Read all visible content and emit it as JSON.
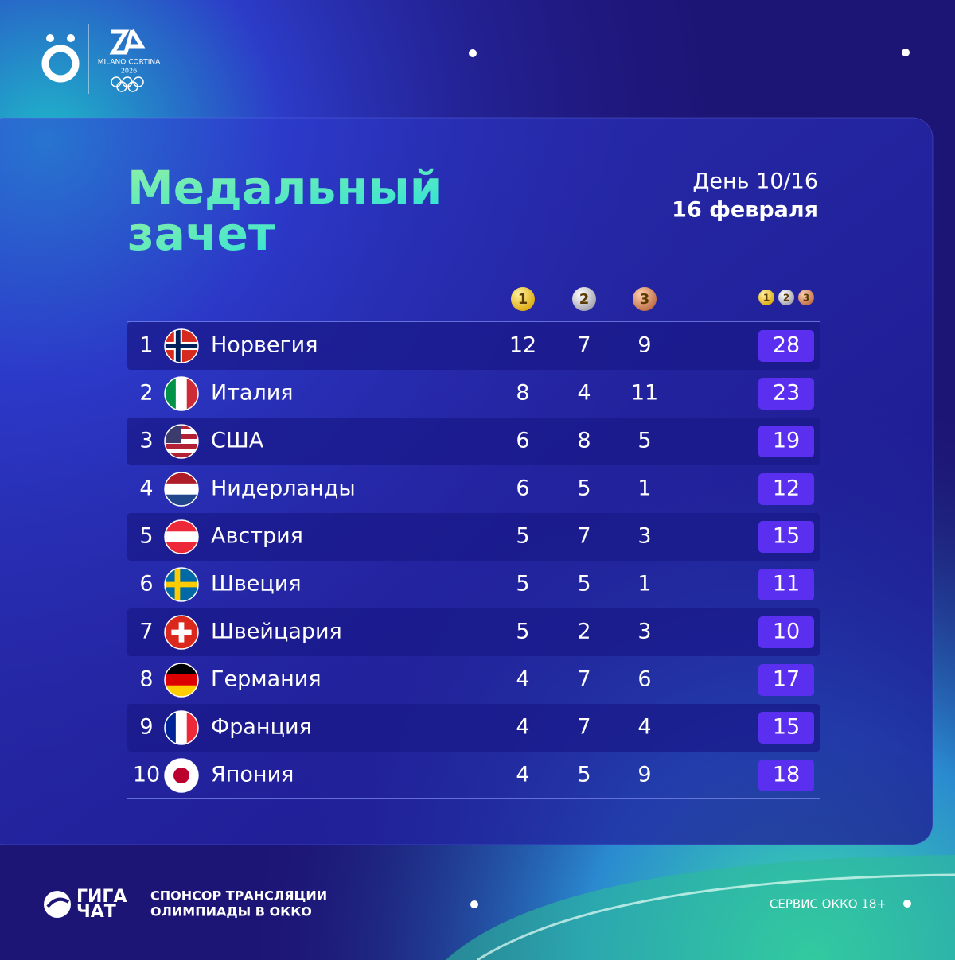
{
  "logo": {
    "event": "MILANO CORTINA",
    "year": "2026"
  },
  "header": {
    "title_lines": [
      "Медальный",
      "зачет"
    ],
    "day": "День 10/16",
    "date": "16 февраля"
  },
  "table": {
    "medal_icons": [
      1,
      2,
      3
    ],
    "rows": [
      [
        1,
        "Норвегия",
        12,
        7,
        9,
        28
      ],
      [
        2,
        "Италия",
        8,
        4,
        11,
        23
      ],
      [
        3,
        "США",
        6,
        8,
        5,
        19
      ],
      [
        4,
        "Нидерланды",
        6,
        5,
        1,
        12
      ],
      [
        5,
        "Австрия",
        5,
        7,
        3,
        15
      ],
      [
        6,
        "Швеция",
        5,
        5,
        1,
        11
      ],
      [
        7,
        "Швейцария",
        5,
        2,
        3,
        10
      ],
      [
        8,
        "Германия",
        4,
        7,
        6,
        17
      ],
      [
        9,
        "Франция",
        4,
        7,
        4,
        15
      ],
      [
        10,
        "Япония",
        4,
        5,
        9,
        18
      ]
    ]
  },
  "footer": {
    "brand": [
      "ГИГА",
      "ЧАТ"
    ],
    "sponsor_lines": [
      "СПОНСОР ТРАНСЛЯЦИИ",
      "ОЛИМПИАДЫ В ОККО"
    ],
    "service": "СЕРВИС ОККО 18+"
  }
}
